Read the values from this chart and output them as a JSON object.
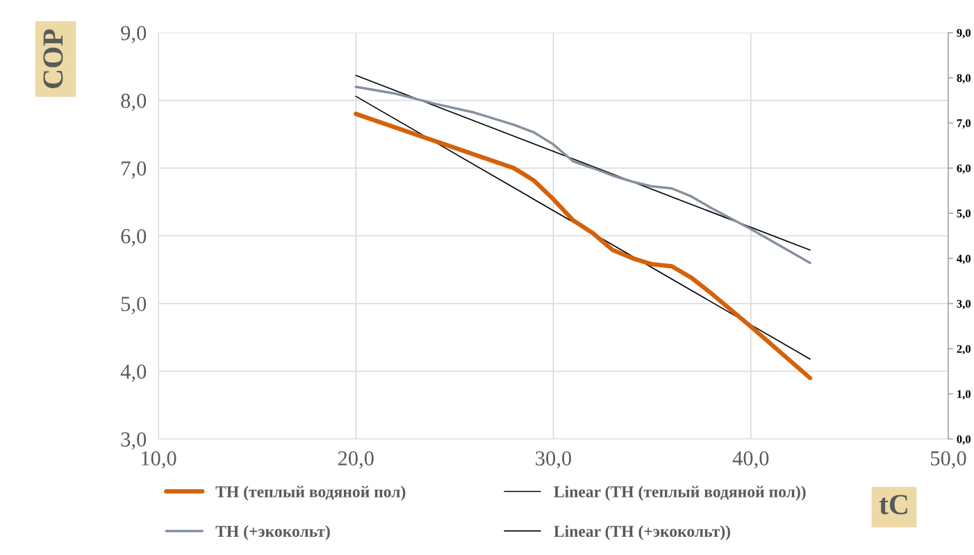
{
  "chart_data": {
    "type": "line",
    "xlabel": "tC",
    "ylabel": "COP",
    "xlim": [
      10,
      50
    ],
    "xticks": [
      {
        "value": 10,
        "label": "10,0"
      },
      {
        "value": 20,
        "label": "20,0"
      },
      {
        "value": 30,
        "label": "30,0"
      },
      {
        "value": 40,
        "label": "40,0"
      },
      {
        "value": 50,
        "label": "50,0"
      }
    ],
    "ylim": [
      3,
      9
    ],
    "yticks": [
      {
        "value": 3,
        "label": "3,0"
      },
      {
        "value": 4,
        "label": "4,0"
      },
      {
        "value": 5,
        "label": "5,0"
      },
      {
        "value": 6,
        "label": "6,0"
      },
      {
        "value": 7,
        "label": "7,0"
      },
      {
        "value": 8,
        "label": "8,0"
      },
      {
        "value": 9,
        "label": "9,0"
      }
    ],
    "y2lim": [
      0,
      9
    ],
    "y2ticks": [
      {
        "value": 0,
        "label": "0,0"
      },
      {
        "value": 1,
        "label": "1,0"
      },
      {
        "value": 2,
        "label": "2,0"
      },
      {
        "value": 3,
        "label": "3,0"
      },
      {
        "value": 4,
        "label": "4,0"
      },
      {
        "value": 5,
        "label": "5,0"
      },
      {
        "value": 6,
        "label": "6,0"
      },
      {
        "value": 7,
        "label": "7,0"
      },
      {
        "value": 8,
        "label": "8,0"
      },
      {
        "value": 9,
        "label": "9,0"
      }
    ],
    "grid": true,
    "legend": "bottom",
    "marker": "none",
    "line_style": "solid",
    "series": [
      {
        "name": "ТН (теплый водяной пол)",
        "color": "#d4620a",
        "x": [
          20,
          22,
          24,
          26,
          28,
          29,
          30,
          31,
          32,
          33,
          34,
          35,
          36,
          37,
          38,
          40,
          43
        ],
        "values": [
          7.8,
          7.6,
          7.4,
          7.2,
          7.0,
          6.82,
          6.54,
          6.23,
          6.04,
          5.79,
          5.67,
          5.58,
          5.55,
          5.38,
          5.15,
          4.66,
          3.9
        ]
      },
      {
        "name": "ТН (+экокольт)",
        "color": "#8590a0",
        "x": [
          20,
          22,
          24,
          26,
          28,
          29,
          30,
          31,
          32,
          33,
          34,
          35,
          36,
          37,
          38,
          40,
          43
        ],
        "values": [
          8.2,
          8.1,
          7.95,
          7.82,
          7.64,
          7.53,
          7.35,
          7.1,
          7.0,
          6.89,
          6.8,
          6.73,
          6.7,
          6.58,
          6.41,
          6.1,
          5.6
        ]
      },
      {
        "name": "Linear (ТН (теплый водяной пол))",
        "color": "#000000",
        "x": [
          20,
          43
        ],
        "values": [
          8.06,
          4.18
        ]
      },
      {
        "name": "Linear (ТН (+экокольт))",
        "color": "#000000",
        "x": [
          20,
          43
        ],
        "values": [
          8.37,
          5.79
        ]
      }
    ]
  }
}
